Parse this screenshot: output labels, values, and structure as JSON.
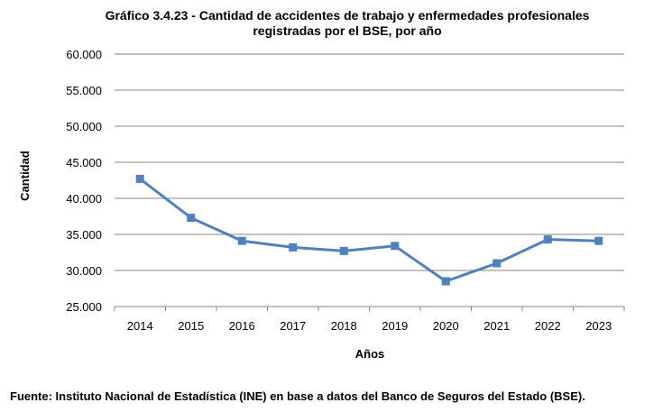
{
  "chart_data": {
    "type": "line",
    "title_line1": "Gráfico 3.4.23 - Cantidad de accidentes de trabajo y enfermedades profesionales",
    "title_line2": "registradas por el BSE, por año",
    "xlabel": "Años",
    "ylabel": "Cantidad",
    "ylim": [
      25000,
      60000
    ],
    "yticks": [
      25000,
      30000,
      35000,
      40000,
      45000,
      50000,
      55000,
      60000
    ],
    "ytick_labels": [
      "25.000",
      "30.000",
      "35.000",
      "40.000",
      "45.000",
      "50.000",
      "55.000",
      "60.000"
    ],
    "categories": [
      "2014",
      "2015",
      "2016",
      "2017",
      "2018",
      "2019",
      "2020",
      "2021",
      "2022",
      "2023"
    ],
    "values": [
      42700,
      37300,
      34100,
      33200,
      32700,
      33400,
      28500,
      31000,
      34300,
      34100
    ],
    "grid": true,
    "marker": "square",
    "line_color": "#4f81bd"
  },
  "footer": {
    "source": "Fuente: Instituto Nacional de Estadística (INE) en base a datos del Banco de Seguros del Estado (BSE)."
  }
}
